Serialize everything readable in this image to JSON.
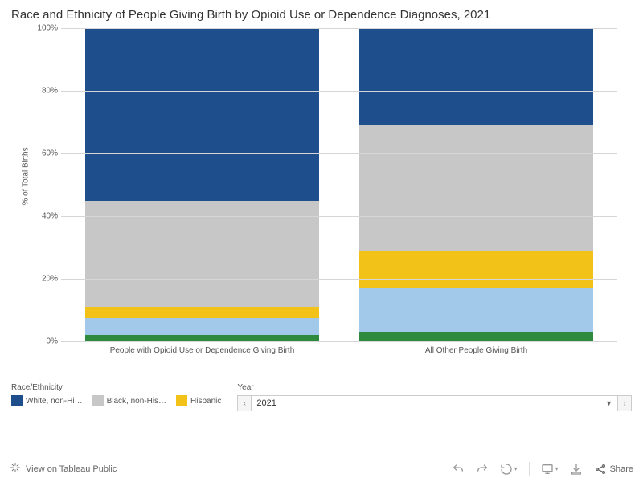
{
  "title": "Race and Ethnicity of People Giving Birth by Opioid Use or Dependence Diagnoses, 2021",
  "chart": {
    "type": "stacked-bar-100pct",
    "ylabel": "% of Total Births",
    "ylim": [
      0,
      100
    ],
    "yticks": [
      0,
      20,
      40,
      60,
      80,
      100
    ],
    "ytick_labels": [
      "0%",
      "20%",
      "40%",
      "60%",
      "80%",
      "100%"
    ],
    "grid_color": "#d6d6d6",
    "background_color": "#ffffff",
    "categories": [
      "People with Opioid Use or Dependence Giving Birth",
      "All Other People Giving Birth"
    ],
    "stack_order": [
      "other_green",
      "lightblue",
      "hispanic",
      "black",
      "white"
    ],
    "series_colors": {
      "white": "#1f4e8c",
      "black": "#c7c7c7",
      "hispanic": "#f2c218",
      "lightblue": "#a3c9ea",
      "other_green": "#2e8b3d"
    },
    "data": [
      {
        "white": 55,
        "black": 34,
        "hispanic": 3.5,
        "lightblue": 5.5,
        "other_green": 2
      },
      {
        "white": 31,
        "black": 40,
        "hispanic": 12,
        "lightblue": 14,
        "other_green": 3
      }
    ],
    "label_fontsize": 10,
    "tick_fontsize": 10,
    "title_fontsize": 15
  },
  "legend": {
    "title": "Race/Ethnicity",
    "items": [
      {
        "key": "white",
        "label": "White, non-Hi…",
        "color": "#1f4e8c"
      },
      {
        "key": "black",
        "label": "Black, non-His…",
        "color": "#c7c7c7"
      },
      {
        "key": "hispanic",
        "label": "Hispanic",
        "color": "#f2c218"
      }
    ]
  },
  "year": {
    "label": "Year",
    "value": "2021",
    "prev_glyph": "‹",
    "next_glyph": "›"
  },
  "footer": {
    "view_label": "View on Tableau Public",
    "share_label": "Share"
  }
}
